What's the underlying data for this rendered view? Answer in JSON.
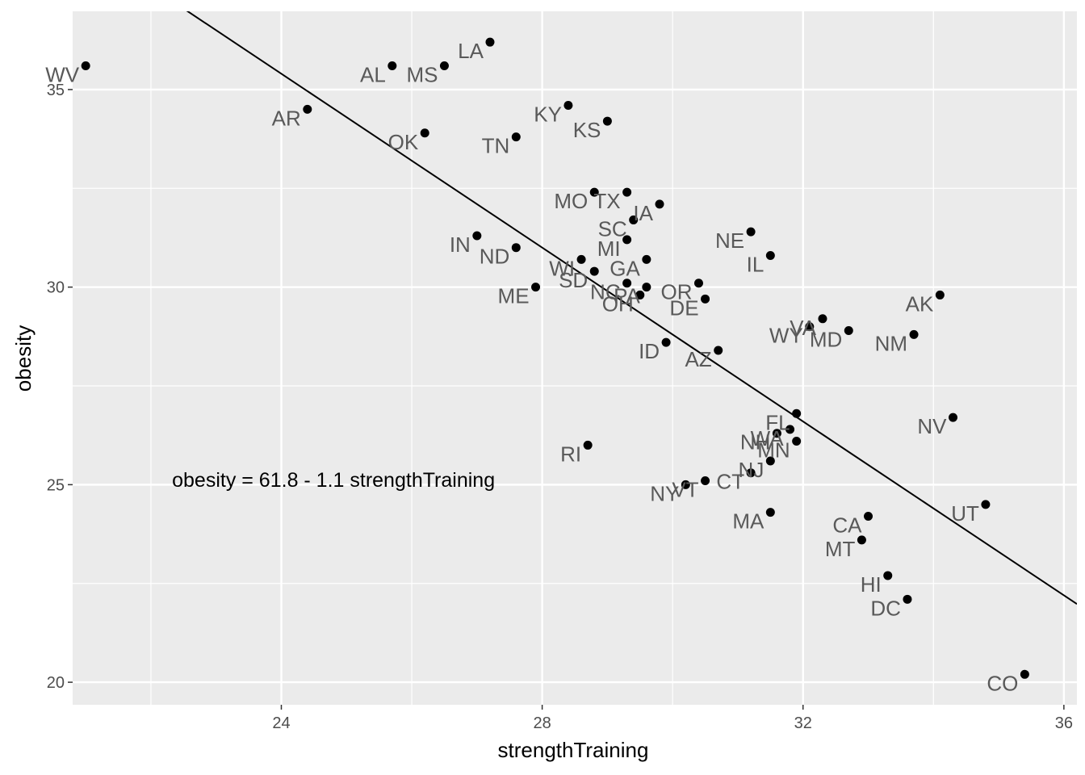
{
  "chart_data": {
    "type": "scatter",
    "xlabel": "strengthTraining",
    "ylabel": "obesity",
    "xlim": [
      20.8,
      36.2
    ],
    "ylim": [
      19.43,
      36.98
    ],
    "x_ticks": [
      24,
      28,
      32,
      36
    ],
    "y_ticks": [
      20,
      25,
      30,
      35
    ],
    "grid": true,
    "colors": {
      "panel": "#ebebeb",
      "grid": "#ffffff",
      "point": "#000000",
      "label": "#595959",
      "line": "#000000"
    },
    "annotation": {
      "text": "obesity = 61.8 - 1.1 strengthTraining",
      "x": 24.8,
      "y": 24.95
    },
    "regression": {
      "intercept": 61.8,
      "slope": -1.1,
      "x_range": [
        20.8,
        36.2
      ]
    },
    "points": [
      {
        "label": "WV",
        "x": 21.0,
        "y": 35.6
      },
      {
        "label": "AL",
        "x": 25.7,
        "y": 35.6
      },
      {
        "label": "MS",
        "x": 26.5,
        "y": 35.6
      },
      {
        "label": "LA",
        "x": 27.2,
        "y": 36.2
      },
      {
        "label": "AR",
        "x": 24.4,
        "y": 34.5
      },
      {
        "label": "KY",
        "x": 28.4,
        "y": 34.6
      },
      {
        "label": "KS",
        "x": 29.0,
        "y": 34.2
      },
      {
        "label": "OK",
        "x": 26.2,
        "y": 33.9
      },
      {
        "label": "TN",
        "x": 27.6,
        "y": 33.8
      },
      {
        "label": "MO",
        "x": 28.8,
        "y": 32.4
      },
      {
        "label": "TX",
        "x": 29.3,
        "y": 32.4
      },
      {
        "label": "IA",
        "x": 29.8,
        "y": 32.1
      },
      {
        "label": "SC",
        "x": 29.4,
        "y": 31.7
      },
      {
        "label": "IN",
        "x": 27.0,
        "y": 31.3
      },
      {
        "label": "ND",
        "x": 27.6,
        "y": 31.0
      },
      {
        "label": "NE",
        "x": 31.2,
        "y": 31.4
      },
      {
        "label": "MI",
        "x": 29.3,
        "y": 31.2
      },
      {
        "label": "IL",
        "x": 31.5,
        "y": 30.8
      },
      {
        "label": "WI",
        "x": 28.6,
        "y": 30.7
      },
      {
        "label": "GA",
        "x": 29.6,
        "y": 30.7
      },
      {
        "label": "SD",
        "x": 28.8,
        "y": 30.4
      },
      {
        "label": "ME",
        "x": 27.9,
        "y": 30.0
      },
      {
        "label": "NC",
        "x": 29.3,
        "y": 30.1
      },
      {
        "label": "PA",
        "x": 29.6,
        "y": 30.0
      },
      {
        "label": "OH",
        "x": 29.5,
        "y": 29.8
      },
      {
        "label": "OR",
        "x": 30.4,
        "y": 30.1
      },
      {
        "label": "DE",
        "x": 30.5,
        "y": 29.7
      },
      {
        "label": "AK",
        "x": 34.1,
        "y": 29.8
      },
      {
        "label": "VA",
        "x": 32.3,
        "y": 29.2
      },
      {
        "label": "WY",
        "x": 32.1,
        "y": 29.0
      },
      {
        "label": "MD",
        "x": 32.7,
        "y": 28.9
      },
      {
        "label": "NM",
        "x": 33.7,
        "y": 28.8
      },
      {
        "label": "ID",
        "x": 29.9,
        "y": 28.6
      },
      {
        "label": "AZ",
        "x": 30.7,
        "y": 28.4
      },
      {
        "label": "NV",
        "x": 34.3,
        "y": 26.7
      },
      {
        "label": "FL",
        "x": 31.9,
        "y": 26.8
      },
      {
        "label": "WA",
        "x": 31.8,
        "y": 26.4
      },
      {
        "label": "NH",
        "x": 31.6,
        "y": 26.3
      },
      {
        "label": "MN",
        "x": 31.9,
        "y": 26.1
      },
      {
        "label": "RI",
        "x": 28.7,
        "y": 26.0
      },
      {
        "label": "NJ",
        "x": 31.5,
        "y": 25.6
      },
      {
        "label": "CT",
        "x": 31.2,
        "y": 25.3
      },
      {
        "label": "VT",
        "x": 30.5,
        "y": 25.1
      },
      {
        "label": "NY",
        "x": 30.2,
        "y": 25.0
      },
      {
        "label": "UT",
        "x": 34.8,
        "y": 24.5
      },
      {
        "label": "MA",
        "x": 31.5,
        "y": 24.3
      },
      {
        "label": "CA",
        "x": 33.0,
        "y": 24.2
      },
      {
        "label": "MT",
        "x": 32.9,
        "y": 23.6
      },
      {
        "label": "HI",
        "x": 33.3,
        "y": 22.7
      },
      {
        "label": "DC",
        "x": 33.6,
        "y": 22.1
      },
      {
        "label": "CO",
        "x": 35.4,
        "y": 20.2
      }
    ]
  }
}
